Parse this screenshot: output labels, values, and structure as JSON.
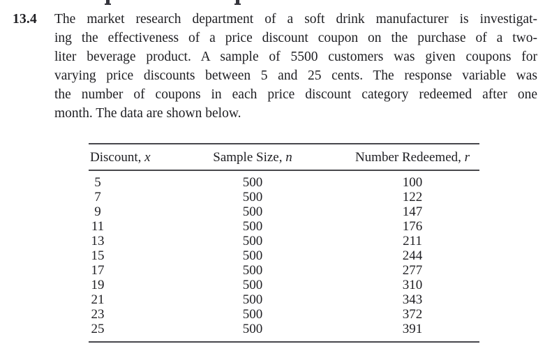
{
  "problem": {
    "number": "13.4",
    "lines": [
      "The market research department of a soft drink manufacturer is investigat-",
      "ing the effectiveness of a price discount coupon on the purchase of a two-",
      "liter beverage product. A sample of 5500 customers was given coupons for",
      "varying price discounts between 5 and 25 cents. The response variable was",
      "the number of coupons in each price discount category redeemed after one",
      "month. The data are shown below."
    ]
  },
  "table": {
    "headers": [
      {
        "text": "Discount, ",
        "var": "x"
      },
      {
        "text": "Sample Size, ",
        "var": "n"
      },
      {
        "text": "Number Redeemed, ",
        "var": "r"
      }
    ],
    "rows": [
      {
        "x": "5",
        "n": "500",
        "r": "100"
      },
      {
        "x": "7",
        "n": "500",
        "r": "122"
      },
      {
        "x": "9",
        "n": "500",
        "r": "147"
      },
      {
        "x": "11",
        "n": "500",
        "r": "176"
      },
      {
        "x": "13",
        "n": "500",
        "r": "211"
      },
      {
        "x": "15",
        "n": "500",
        "r": "244"
      },
      {
        "x": "17",
        "n": "500",
        "r": "277"
      },
      {
        "x": "19",
        "n": "500",
        "r": "310"
      },
      {
        "x": "21",
        "n": "500",
        "r": "343"
      },
      {
        "x": "23",
        "n": "500",
        "r": "372"
      },
      {
        "x": "25",
        "n": "500",
        "r": "391"
      }
    ]
  },
  "colors": {
    "text": "#1e1e22",
    "rule": "#47474c",
    "background": "#ffffff"
  }
}
